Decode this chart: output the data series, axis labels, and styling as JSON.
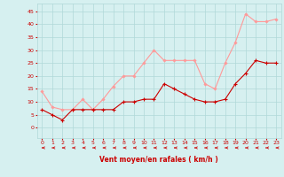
{
  "x": [
    0,
    1,
    2,
    3,
    4,
    5,
    6,
    7,
    8,
    9,
    10,
    11,
    12,
    13,
    14,
    15,
    16,
    17,
    18,
    19,
    20,
    21,
    22,
    23
  ],
  "wind_avg": [
    7,
    5,
    3,
    7,
    7,
    7,
    7,
    7,
    10,
    10,
    11,
    11,
    17,
    15,
    13,
    11,
    10,
    10,
    11,
    17,
    21,
    26,
    25,
    25
  ],
  "wind_gust": [
    14,
    8,
    7,
    7,
    11,
    7,
    11,
    16,
    20,
    20,
    25,
    30,
    26,
    26,
    26,
    26,
    17,
    15,
    25,
    33,
    44,
    41,
    41,
    42
  ],
  "bg_color": "#d6f0f0",
  "grid_color": "#b0d8d8",
  "avg_color": "#cc0000",
  "gust_color": "#ff9999",
  "arrow_color": "#cc0000",
  "xlabel": "Vent moyen/en rafales ( km/h )",
  "xlabel_color": "#cc0000",
  "tick_color": "#cc0000",
  "ylim": [
    -4,
    48
  ],
  "yticks": [
    0,
    5,
    10,
    15,
    20,
    25,
    30,
    35,
    40,
    45
  ],
  "xlim": [
    -0.5,
    23.5
  ]
}
